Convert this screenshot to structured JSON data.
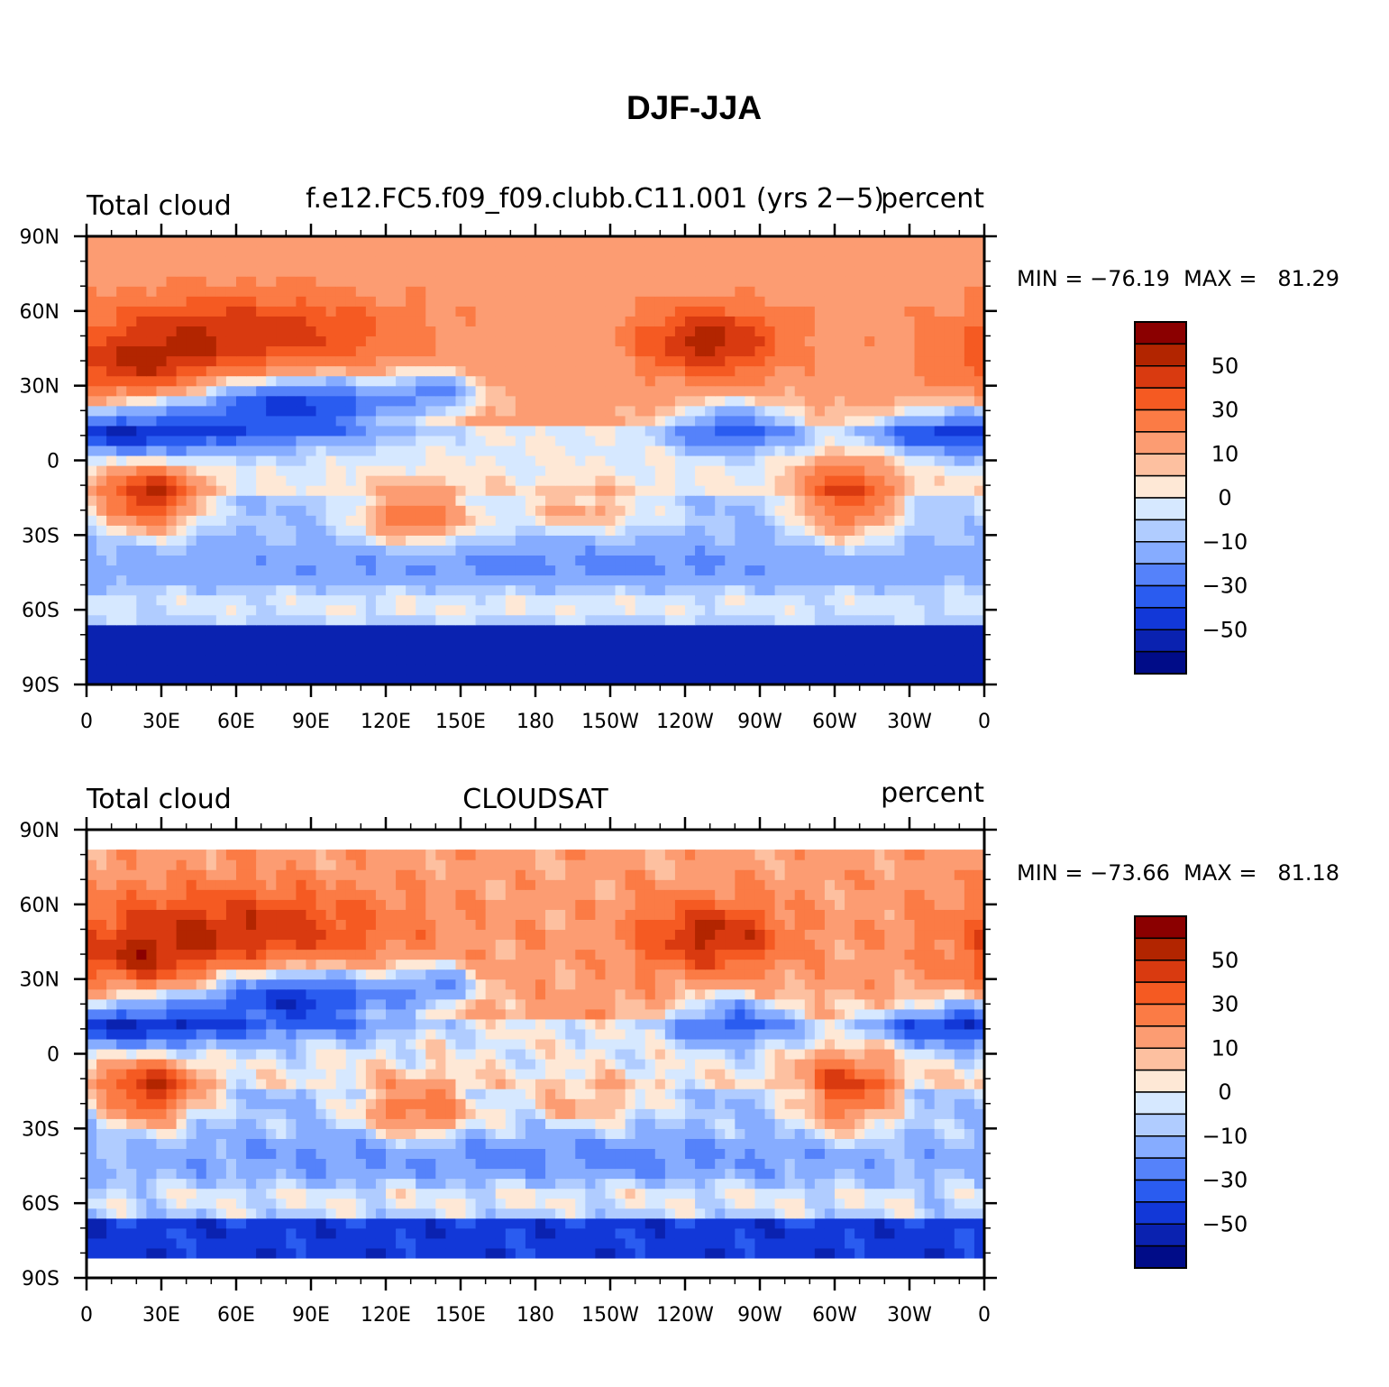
{
  "figure_title": "DJF-JJA",
  "chart_data": [
    {
      "type": "heatmap",
      "subtype": "filled contour map",
      "left_title": "Total cloud",
      "center_title": "f.e12.FC5.f09_f09.clubb.C11.001 (yrs 2−5)",
      "right_title": "percent",
      "stats_text": "MIN = −76.19  MAX =   81.29",
      "min": -76.19,
      "max": 81.29,
      "x_range": [
        0,
        360
      ],
      "y_range": [
        -90,
        90
      ],
      "x_tick_labels": [
        "0",
        "30E",
        "60E",
        "90E",
        "120E",
        "150E",
        "180",
        "150W",
        "120W",
        "90W",
        "60W",
        "30W",
        "0"
      ],
      "y_tick_labels": [
        "90N",
        "60N",
        "30N",
        "0",
        "30S",
        "60S",
        "90S"
      ],
      "colorbar_levels": [
        -60,
        -50,
        -40,
        -30,
        -20,
        -10,
        -5,
        0,
        5,
        10,
        20,
        30,
        40,
        50,
        60
      ],
      "colorbar_labels": [
        "50",
        "30",
        "10",
        "0",
        "−10",
        "−30",
        "−50"
      ],
      "colorbar_colors": [
        "#8b0000",
        "#b22500",
        "#d93a10",
        "#f55a22",
        "#fb7b45",
        "#fc9c72",
        "#fdc0a0",
        "#fee8d6",
        "#d6e8ff",
        "#b0ccff",
        "#86acff",
        "#5582fa",
        "#2a5cf0",
        "#1238d8",
        "#0a22b0",
        "#000c88"
      ]
    },
    {
      "type": "heatmap",
      "subtype": "filled contour map",
      "left_title": "Total cloud",
      "center_title": "CLOUDSAT",
      "right_title": "percent",
      "stats_text": "MIN = −73.66  MAX =   81.18",
      "min": -73.66,
      "max": 81.18,
      "x_range": [
        0,
        360
      ],
      "y_range": [
        -90,
        90
      ],
      "data_lat_range": [
        -82,
        82
      ],
      "x_tick_labels": [
        "0",
        "30E",
        "60E",
        "90E",
        "120E",
        "150E",
        "180",
        "150W",
        "120W",
        "90W",
        "60W",
        "30W",
        "0"
      ],
      "y_tick_labels": [
        "90N",
        "60N",
        "30N",
        "0",
        "30S",
        "60S",
        "90S"
      ],
      "colorbar_levels": [
        -60,
        -50,
        -40,
        -30,
        -20,
        -10,
        -5,
        0,
        5,
        10,
        20,
        30,
        40,
        50,
        60
      ],
      "colorbar_labels": [
        "50",
        "30",
        "10",
        "0",
        "−10",
        "−30",
        "−50"
      ],
      "colorbar_colors": [
        "#8b0000",
        "#b22500",
        "#d93a10",
        "#f55a22",
        "#fb7b45",
        "#fc9c72",
        "#fdc0a0",
        "#fee8d6",
        "#d6e8ff",
        "#b0ccff",
        "#86acff",
        "#5582fa",
        "#2a5cf0",
        "#1238d8",
        "#0a22b0",
        "#000c88"
      ]
    }
  ]
}
